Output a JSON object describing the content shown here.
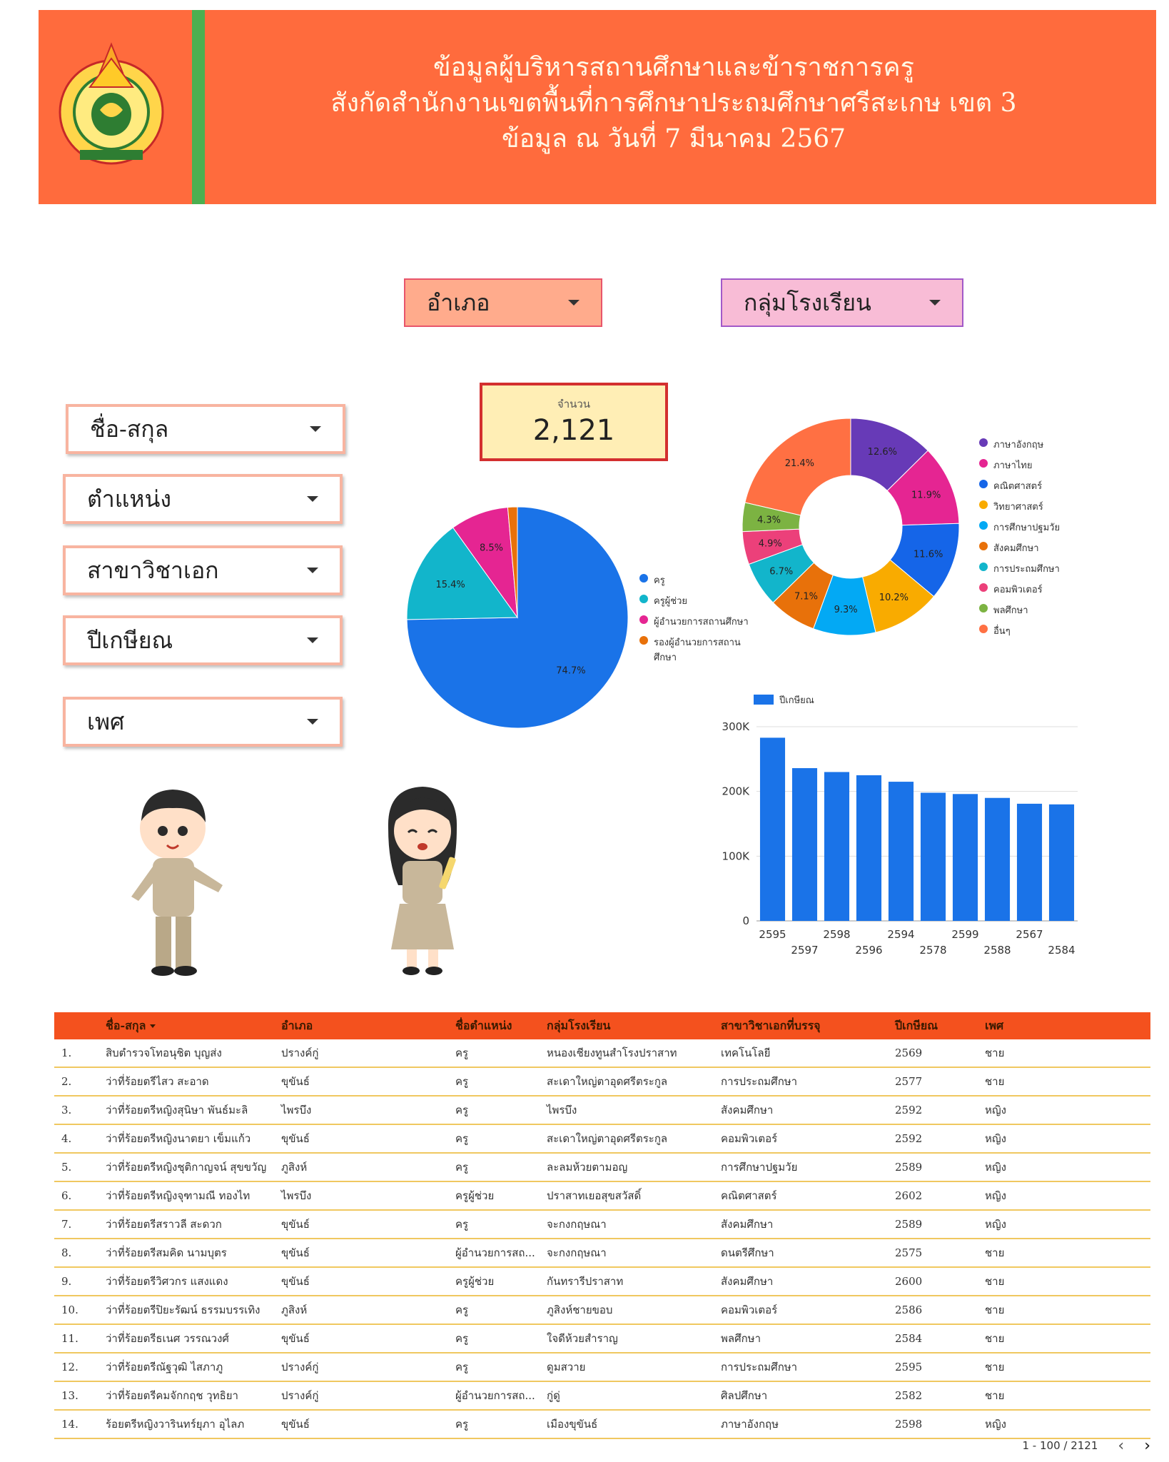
{
  "header": {
    "title_line1": "ข้อมูลผู้บริหารสถานศึกษาและข้าราชการครู",
    "title_line2": "สังกัดสำนักงานเขตพื้นที่การศึกษาประถมศึกษาศรีสะเกษ เขต 3",
    "title_line3": "ข้อมูล ณ วันที่ 7  มีนาคม  2567",
    "logo_text": "สำนักงานเขตพื้นที่การศึกษาประถมศึกษาศรีสะเกษ เขต ๓",
    "logo_icon": "office-emblem-logo"
  },
  "filters": {
    "district": "อำเภอ",
    "school_group": "กลุ่มโรงเรียน",
    "name": "ชื่อ-สกุล",
    "position": "ตำแหน่ง",
    "major": "สาขาวิชาเอก",
    "retire_year": "ปีเกษียณ",
    "gender": "เพศ"
  },
  "scorecard": {
    "label": "จำนวน",
    "value": "2,121"
  },
  "colors": {
    "blue": "#1a73e8",
    "teal": "#12b5cb",
    "magenta": "#e52592",
    "orange": "#e8710a",
    "purple": "#673ab7",
    "blue2": "#1565e8",
    "amber": "#f9ab00",
    "sky": "#03a9f4",
    "deep_orange": "#f4511e",
    "cyan": "#00acc1",
    "pink": "#ec407a",
    "green": "#7cb342",
    "coral": "#ff7043"
  },
  "chart_data": [
    {
      "type": "pie",
      "labels": [
        "ครู",
        "ครูผู้ช่วย",
        "ผู้อำนวยการสถานศึกษา",
        "รองผู้อำนวยการสถานศึกษา"
      ],
      "values": [
        74.7,
        15.4,
        8.5,
        1.4
      ],
      "value_labels": [
        "74.7%",
        "15.4%",
        "8.5%",
        ""
      ],
      "colors": [
        "#1a73e8",
        "#12b5cb",
        "#e52592",
        "#e8710a"
      ],
      "legend": "right"
    },
    {
      "type": "pie",
      "donut": true,
      "labels": [
        "ภาษาอังกฤษ",
        "ภาษาไทย",
        "คณิตศาสตร์",
        "วิทยาศาสตร์",
        "การศึกษาปฐมวัย",
        "สังคมศึกษา",
        "การประถมศึกษา",
        "คอมพิวเตอร์",
        "พลศึกษา",
        "อื่นๆ"
      ],
      "values": [
        12.6,
        11.9,
        11.6,
        10.2,
        9.3,
        7.1,
        6.7,
        4.9,
        4.3,
        21.4
      ],
      "value_labels": [
        "12.6%",
        "11.9%",
        "11.6%",
        "10.2%",
        "9.3%",
        "7.1%",
        "6.7%",
        "4.9%",
        "4.3%",
        "21.4%"
      ],
      "colors": [
        "#673ab7",
        "#e52592",
        "#1565e8",
        "#f9ab00",
        "#03a9f4",
        "#e8710a",
        "#12b5cb",
        "#ec407a",
        "#7cb342",
        "#ff7043"
      ],
      "legend": "right"
    },
    {
      "type": "bar",
      "categories": [
        "2595",
        "2597",
        "2598",
        "2596",
        "2594",
        "2578",
        "2599",
        "2588",
        "2567",
        "2584"
      ],
      "series": [
        {
          "name": "ปีเกษียณ",
          "values": [
            283000,
            236000,
            230000,
            225000,
            215000,
            198000,
            196000,
            190000,
            181000,
            180000
          ]
        }
      ],
      "y_ticks": [
        "0",
        "100K",
        "200K",
        "300K"
      ],
      "ylim": [
        0,
        300000
      ],
      "grid": true,
      "legend": "top-left",
      "color": "#1a73e8"
    }
  ],
  "characters": {
    "male": "male-teacher-illustration",
    "female": "female-teacher-illustration"
  },
  "table": {
    "columns": [
      "",
      "ชื่อ-สกุล",
      "อำเภอ",
      "ชื่อตำแหน่ง",
      "กลุ่มโรงเรียน",
      "สาขาวิชาเอกที่บรรจุ",
      "ปีเกษียณ",
      "เพศ"
    ],
    "rows": [
      [
        "1.",
        "สิบตำรวจโทอนุชิต บุญส่ง",
        "ปรางค์กู่",
        "ครู",
        "หนองเชียงทูนสำโรงปราสาท",
        "เทคโนโลยี",
        "2569",
        "ชาย"
      ],
      [
        "2.",
        "ว่าที่ร้อยตรีไสว สะอาด",
        "ขุขันธ์",
        "ครู",
        "สะเดาใหญ่ตาอุดศรีตระกูล",
        "การประถมศึกษา",
        "2577",
        "ชาย"
      ],
      [
        "3.",
        "ว่าที่ร้อยตรีหญิงสุนิษา พันธ์มะลิ",
        "ไพรบึง",
        "ครู",
        "ไพรบึง",
        "สังคมศึกษา",
        "2592",
        "หญิง"
      ],
      [
        "4.",
        "ว่าที่ร้อยตรีหญิงนาตยา เข็มแก้ว",
        "ขุขันธ์",
        "ครู",
        "สะเดาใหญ่ตาอุดศรีตระกูล",
        "คอมพิวเตอร์",
        "2592",
        "หญิง"
      ],
      [
        "5.",
        "ว่าที่ร้อยตรีหญิงชุติกาญจน์ สุขขวัญ",
        "ภูสิงห์",
        "ครู",
        "ละลมห้วยตามอญ",
        "การศึกษาปฐมวัย",
        "2589",
        "หญิง"
      ],
      [
        "6.",
        "ว่าที่ร้อยตรีหญิงจุฑามณี ทองไท",
        "ไพรบึง",
        "ครูผู้ช่วย",
        "ปราสาทเยอสุขสวัสดิ์",
        "คณิตศาสตร์",
        "2602",
        "หญิง"
      ],
      [
        "7.",
        "ว่าที่ร้อยตรีสราวลี สะดวก",
        "ขุขันธ์",
        "ครู",
        "จะกงกฤษณา",
        "สังคมศึกษา",
        "2589",
        "หญิง"
      ],
      [
        "8.",
        "ว่าที่ร้อยตรีสมคิด นามบุตร",
        "ขุขันธ์",
        "ผู้อำนวยการสถ...",
        "จะกงกฤษณา",
        "ดนตรีศึกษา",
        "2575",
        "ชาย"
      ],
      [
        "9.",
        "ว่าที่ร้อยตรีวิศวกร แสงแดง",
        "ขุขันธ์",
        "ครูผู้ช่วย",
        "กันทรารีปราสาท",
        "สังคมศึกษา",
        "2600",
        "ชาย"
      ],
      [
        "10.",
        "ว่าที่ร้อยตรีปิยะรัฒน์ ธรรมบรรเทิง",
        "ภูสิงห์",
        "ครู",
        "ภูสิงห์ชายขอบ",
        "คอมพิวเตอร์",
        "2586",
        "ชาย"
      ],
      [
        "11.",
        "ว่าที่ร้อยตรีธเนศ วรรณวงศ์",
        "ขุขันธ์",
        "ครู",
        "ใจดีห้วยสำราญ",
        "พลศึกษา",
        "2584",
        "ชาย"
      ],
      [
        "12.",
        "ว่าที่ร้อยตรีณัฐวุฒิ ไสภาภู",
        "ปรางค์กู่",
        "ครู",
        "ดูมสวาย",
        "การประถมศึกษา",
        "2595",
        "ชาย"
      ],
      [
        "13.",
        "ว่าที่ร้อยตรีคมจักกฤช วุทธิยา",
        "ปรางค์กู่",
        "ผู้อำนวยการสถ...",
        "กู่ดู่",
        "ศิลปศึกษา",
        "2582",
        "ชาย"
      ],
      [
        "14.",
        "ร้อยตรีหญิงวารินทร์ยุภา อุไลภ",
        "ขุขันธ์",
        "ครู",
        "เมืองขุขันธ์",
        "ภาษาอังกฤษ",
        "2598",
        "หญิง"
      ]
    ],
    "pagination": "1 - 100 / 2121",
    "prev_icon": "chevron-left-icon",
    "next_icon": "chevron-right-icon"
  }
}
